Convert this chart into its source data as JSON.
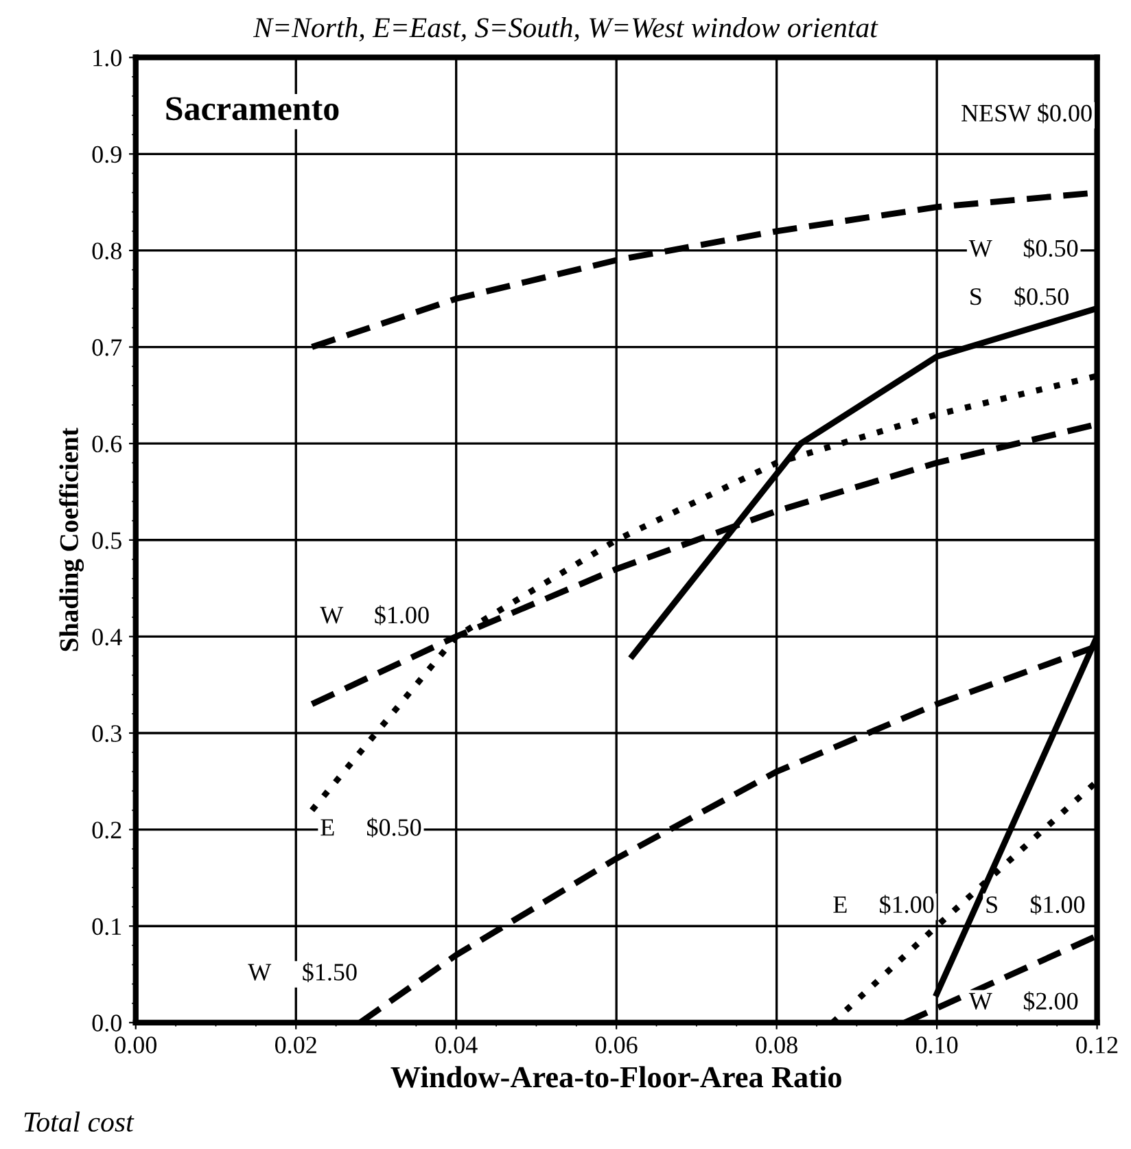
{
  "chart_data": {
    "type": "line",
    "title": "Sacramento",
    "xlabel": "Window-Area-to-Floor-Area Ratio",
    "ylabel": "Shading Coefficient",
    "xlim": [
      0,
      0.12
    ],
    "ylim": [
      0,
      1.0
    ],
    "xticks": [
      {
        "value": 0,
        "label": "0.00"
      },
      {
        "value": 0.02,
        "label": "0.02"
      },
      {
        "value": 0.04,
        "label": "0.04"
      },
      {
        "value": 0.06,
        "label": "0.06"
      },
      {
        "value": 0.08,
        "label": "0.08"
      },
      {
        "value": 0.1,
        "label": "0.10"
      },
      {
        "value": 0.12,
        "label": "0.12"
      }
    ],
    "yticks": [
      {
        "value": 0,
        "label": "0.0"
      },
      {
        "value": 0.1,
        "label": "0.1"
      },
      {
        "value": 0.2,
        "label": "0.2"
      },
      {
        "value": 0.3,
        "label": "0.3"
      },
      {
        "value": 0.4,
        "label": "0.4"
      },
      {
        "value": 0.5,
        "label": "0.5"
      },
      {
        "value": 0.6,
        "label": "0.6"
      },
      {
        "value": 0.7,
        "label": "0.7"
      },
      {
        "value": 0.8,
        "label": "0.8"
      },
      {
        "value": 0.9,
        "label": "0.9"
      },
      {
        "value": 1.0,
        "label": "1.0"
      }
    ],
    "grid": true,
    "legend": false,
    "marker": "none",
    "series": [
      {
        "color": "#000000",
        "line_style": "dashed",
        "x": [
          0.022,
          0.04,
          0.06,
          0.08,
          0.1,
          0.12
        ],
        "values": [
          0.7,
          0.75,
          0.79,
          0.82,
          0.845,
          0.86
        ]
      },
      {
        "color": "#000000",
        "line_style": "solid",
        "x": [
          0.062,
          0.083,
          0.1,
          0.12
        ],
        "values": [
          0.38,
          0.6,
          0.69,
          0.74
        ]
      },
      {
        "color": "#000000",
        "line_style": "dotted",
        "x": [
          0.022,
          0.04,
          0.06,
          0.08,
          0.1,
          0.12
        ],
        "values": [
          0.22,
          0.4,
          0.5,
          0.58,
          0.63,
          0.67
        ]
      },
      {
        "color": "#000000",
        "line_style": "dashed",
        "x": [
          0.022,
          0.04,
          0.06,
          0.08,
          0.1,
          0.12
        ],
        "values": [
          0.33,
          0.4,
          0.47,
          0.53,
          0.58,
          0.62
        ]
      },
      {
        "color": "#000000",
        "line_style": "dashed",
        "x": [
          0.028,
          0.04,
          0.06,
          0.08,
          0.1,
          0.12
        ],
        "values": [
          0.0,
          0.07,
          0.17,
          0.26,
          0.33,
          0.39
        ]
      },
      {
        "color": "#000000",
        "line_style": "solid",
        "x": [
          0.1,
          0.12
        ],
        "values": [
          0.03,
          0.4
        ]
      },
      {
        "color": "#000000",
        "line_style": "dotted",
        "x": [
          0.087,
          0.1,
          0.12
        ],
        "values": [
          0.0,
          0.1,
          0.25
        ]
      },
      {
        "color": "#000000",
        "line_style": "dashed",
        "x": [
          0.096,
          0.12
        ],
        "values": [
          0.0,
          0.09
        ]
      }
    ],
    "annotations": [
      "NESW $0.00",
      "W     $0.50",
      "S     $0.50",
      "W     $1.00",
      "E     $0.50",
      "W     $1.50",
      "E     $1.00",
      "S     $1.00",
      "W     $2.00",
      "N=North, E=East, S=South, W=West window orientat",
      "Total cost"
    ]
  }
}
